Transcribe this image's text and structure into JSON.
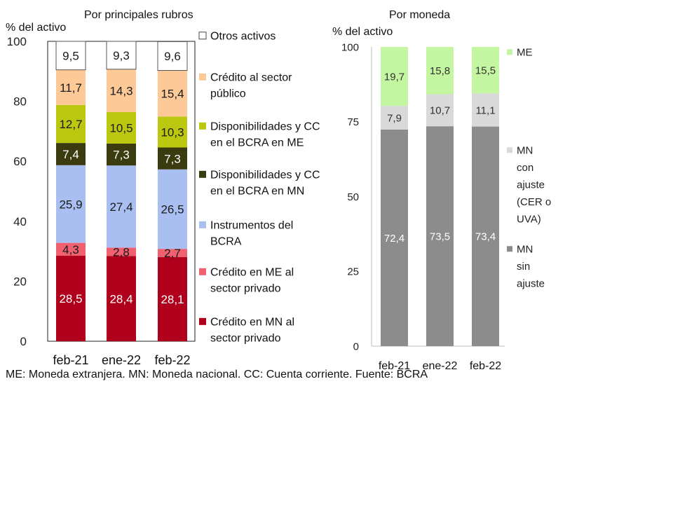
{
  "chart_data": [
    {
      "type": "bar",
      "stacked": true,
      "title": "Por principales rubros",
      "ylabel": "% del activo",
      "ylim": [
        0,
        100
      ],
      "yticks": [
        "0",
        "20",
        "40",
        "60",
        "80",
        "100"
      ],
      "categories": [
        "feb-21",
        "ene-22",
        "feb-22"
      ],
      "legend_position": "right",
      "series": [
        {
          "name": "Crédito en MN al sector privado",
          "color": "#b0001c",
          "label_color": "#ffffff",
          "values": [
            28.5,
            28.4,
            28.1
          ],
          "labels": [
            "28,5",
            "28,4",
            "28,1"
          ]
        },
        {
          "name": "Crédito en ME al sector privado",
          "color": "#f0606f",
          "label_color": "#1a1a1a",
          "values": [
            4.3,
            2.8,
            2.7
          ],
          "labels": [
            "4,3",
            "2,8",
            "2,7"
          ]
        },
        {
          "name": "Instrumentos del BCRA",
          "color": "#a9bff2",
          "label_color": "#1a1a1a",
          "values": [
            25.9,
            27.4,
            26.5
          ],
          "labels": [
            "25,9",
            "27,4",
            "26,5"
          ]
        },
        {
          "name": "Disponibilidades y CC en el BCRA en MN",
          "color": "#3b3b10",
          "label_color": "#ffffff",
          "values": [
            7.4,
            7.3,
            7.3
          ],
          "labels": [
            "7,4",
            "7,3",
            "7,3"
          ]
        },
        {
          "name": "Disponibilidades y CC en el BCRA en ME",
          "color": "#bcc70f",
          "label_color": "#1a1a1a",
          "values": [
            12.7,
            10.5,
            10.3
          ],
          "labels": [
            "12,7",
            "10,5",
            "10,3"
          ]
        },
        {
          "name": "Crédito al sector público",
          "color": "#fcc997",
          "label_color": "#1a1a1a",
          "values": [
            11.7,
            14.3,
            15.4
          ],
          "labels": [
            "11,7",
            "14,3",
            "15,4"
          ]
        },
        {
          "name": "Otros activos",
          "color": "#ffffff",
          "label_color": "#1a1a1a",
          "values": [
            9.5,
            9.3,
            9.6
          ],
          "labels": [
            "9,5",
            "9,3",
            "9,6"
          ]
        }
      ],
      "legend_lines": [
        [
          "Otros activos"
        ],
        [
          "Crédito al sector",
          "público"
        ],
        [
          "Disponibilidades y CC",
          "en el BCRA en ME"
        ],
        [
          "Disponibilidades y CC",
          "en el BCRA en MN"
        ],
        [
          "Instrumentos del",
          "BCRA"
        ],
        [
          "Crédito en ME al",
          "sector privado"
        ],
        [
          "Crédito en MN al",
          "sector privado"
        ]
      ]
    },
    {
      "type": "bar",
      "stacked": true,
      "title": "Por moneda",
      "ylabel": "% del activo",
      "ylim": [
        0,
        100
      ],
      "yticks": [
        "0",
        "25",
        "50",
        "75",
        "100"
      ],
      "categories": [
        "feb-21",
        "ene-22",
        "feb-22"
      ],
      "legend_position": "right",
      "series": [
        {
          "name": "MN sin ajuste",
          "color": "#8c8c8c",
          "label_color": "#ffffff",
          "values": [
            72.4,
            73.5,
            73.4
          ],
          "labels": [
            "72,4",
            "73,5",
            "73,4"
          ]
        },
        {
          "name": "MN con ajuste (CER o UVA)",
          "color": "#d9d9d9",
          "label_color": "#333333",
          "values": [
            7.9,
            10.7,
            11.1
          ],
          "labels": [
            "7,9",
            "10,7",
            "11,1"
          ]
        },
        {
          "name": "ME",
          "color": "#c4f5a0",
          "label_color": "#333333",
          "values": [
            19.7,
            15.8,
            15.5
          ],
          "labels": [
            "19,7",
            "15,8",
            "15,5"
          ]
        }
      ],
      "legend_lines": [
        [
          "ME"
        ],
        [
          "MN",
          "con",
          "ajuste",
          "(CER o",
          "UVA)"
        ],
        [
          "MN",
          "sin",
          "ajuste"
        ]
      ]
    }
  ],
  "footnote": "ME: Moneda extranjera. MN: Moneda nacional. CC: Cuenta corriente. Fuente: BCRA"
}
